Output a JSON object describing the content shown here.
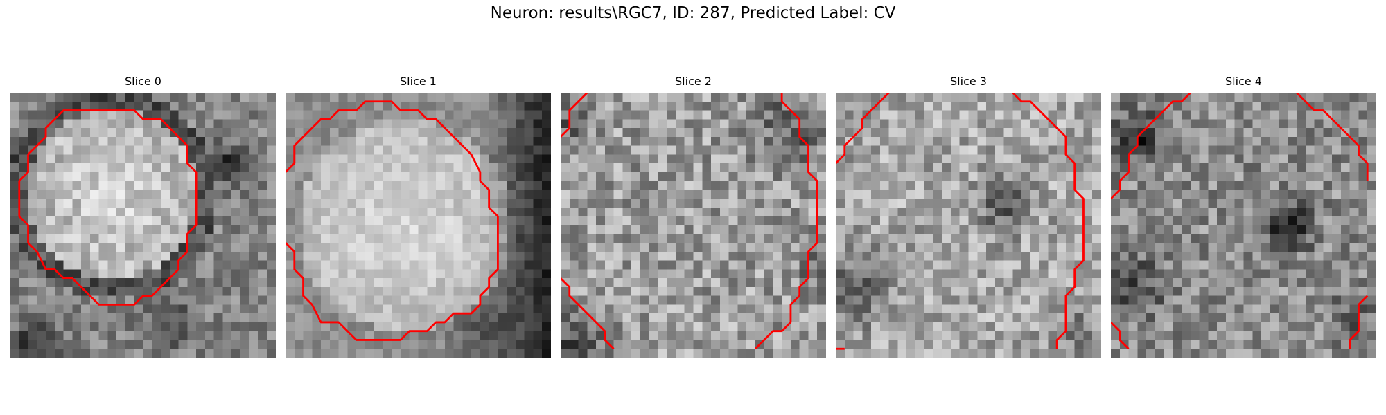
{
  "figure": {
    "title": "Neuron: results\\RGC7, ID: 287, Predicted Label: CV"
  },
  "contour_color": "#ff0000",
  "panels": [
    {
      "title": "Slice 0"
    },
    {
      "title": "Slice 1"
    },
    {
      "title": "Slice 2"
    },
    {
      "title": "Slice 3"
    },
    {
      "title": "Slice 4"
    }
  ]
}
